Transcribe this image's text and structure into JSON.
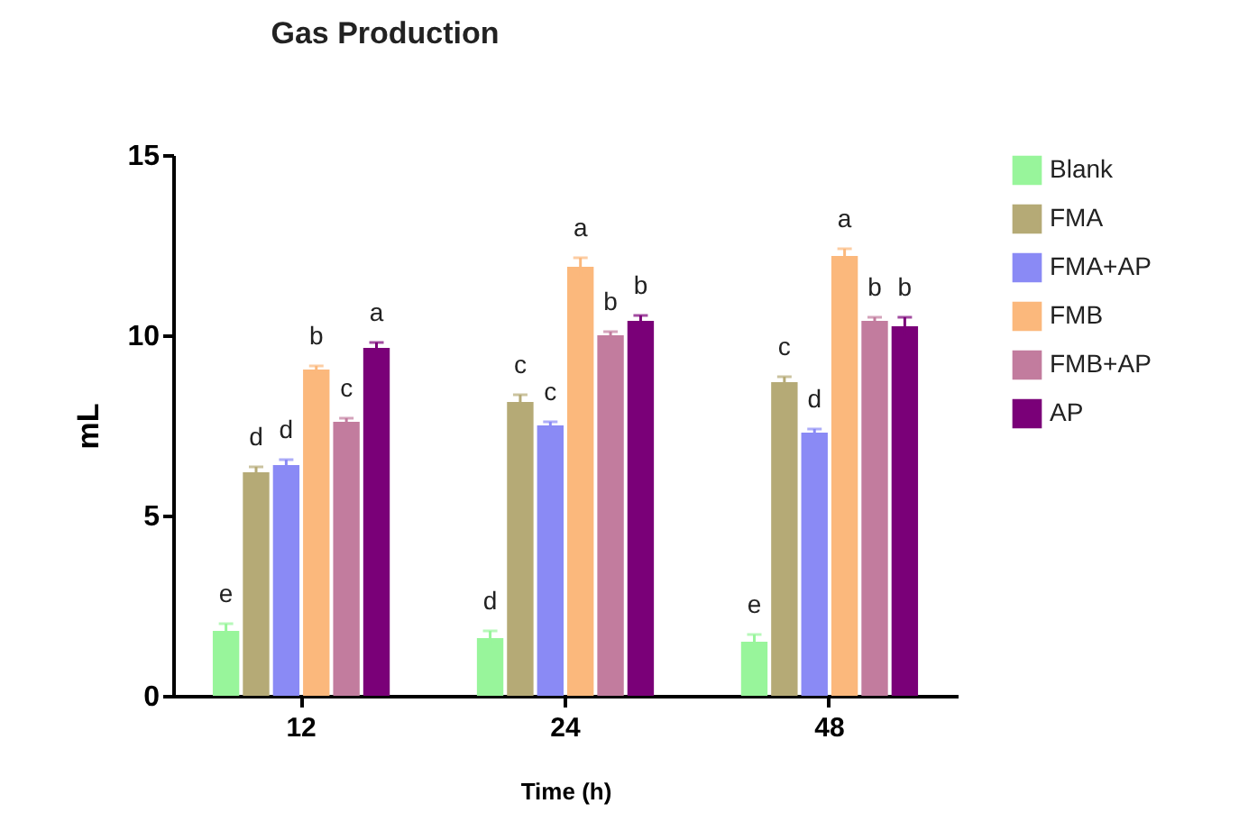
{
  "chart_data": {
    "type": "bar",
    "title": "Gas Production",
    "xlabel": "Time (h)",
    "ylabel": "mL",
    "categories": [
      "12",
      "24",
      "48"
    ],
    "series": [
      {
        "name": "Blank",
        "color": "#98f59b",
        "values": [
          1.8,
          1.6,
          1.5
        ],
        "errors": [
          0.2,
          0.2,
          0.2
        ],
        "value_labels": [
          "e",
          "d",
          "e"
        ]
      },
      {
        "name": "FMA",
        "color": "#b5aa76",
        "values": [
          6.2,
          8.15,
          8.7
        ],
        "errors": [
          0.15,
          0.2,
          0.15
        ],
        "value_labels": [
          "d",
          "c",
          "c"
        ]
      },
      {
        "name": "FMA+AP",
        "color": "#8a8af5",
        "values": [
          6.4,
          7.5,
          7.3
        ],
        "errors": [
          0.15,
          0.1,
          0.1
        ],
        "value_labels": [
          "d",
          "c",
          "d"
        ]
      },
      {
        "name": "FMB",
        "color": "#fbb87c",
        "values": [
          9.05,
          11.9,
          12.2
        ],
        "errors": [
          0.1,
          0.25,
          0.2
        ],
        "value_labels": [
          "b",
          "a",
          "a"
        ]
      },
      {
        "name": "FMB+AP",
        "color": "#c27c9e",
        "values": [
          7.6,
          10.0,
          10.4
        ],
        "errors": [
          0.1,
          0.1,
          0.1
        ],
        "value_labels": [
          "c",
          "b",
          "b"
        ]
      },
      {
        "name": "AP",
        "color": "#7a0078",
        "values": [
          9.65,
          10.4,
          10.25
        ],
        "errors": [
          0.15,
          0.15,
          0.25
        ],
        "value_labels": [
          "a",
          "b",
          "b"
        ]
      }
    ],
    "ylim": [
      0,
      15
    ],
    "yticks": [
      0,
      5,
      10,
      15
    ],
    "grid": false,
    "legend": "right"
  }
}
